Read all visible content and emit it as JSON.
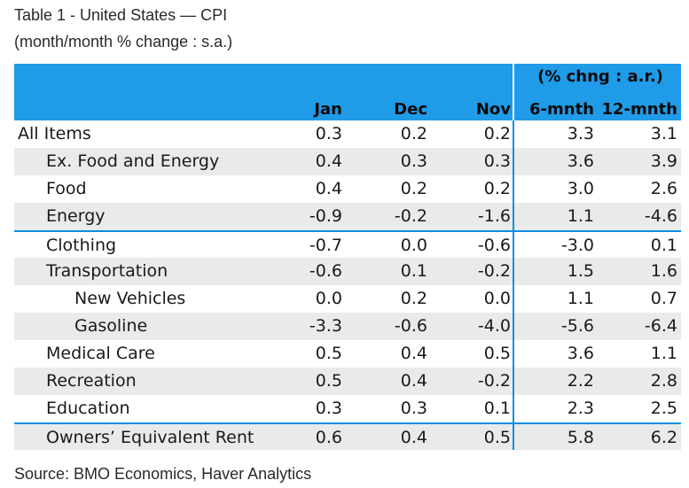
{
  "title": "Table 1 - United States — CPI",
  "subtitle": "(month/month % change : s.a.)",
  "table": {
    "header_group": "(% chng : a.r.)",
    "columns": [
      "Jan",
      "Dec",
      "Nov",
      "6-mnth",
      "12-mnth"
    ],
    "rows": [
      {
        "label": "All Items",
        "indent": 0,
        "values": [
          "0.3",
          "0.2",
          "0.2",
          "3.3",
          "3.1"
        ]
      },
      {
        "label": "Ex. Food and Energy",
        "indent": 1,
        "values": [
          "0.4",
          "0.3",
          "0.3",
          "3.6",
          "3.9"
        ]
      },
      {
        "label": "Food",
        "indent": 1,
        "values": [
          "0.4",
          "0.2",
          "0.2",
          "3.0",
          "2.6"
        ]
      },
      {
        "label": "Energy",
        "indent": 1,
        "values": [
          "-0.9",
          "-0.2",
          "-1.6",
          "1.1",
          "-4.6"
        ]
      },
      {
        "label": "Clothing",
        "indent": 1,
        "values": [
          "-0.7",
          "0.0",
          "-0.6",
          "-3.0",
          "0.1"
        ]
      },
      {
        "label": "Transportation",
        "indent": 1,
        "values": [
          "-0.6",
          "0.1",
          "-0.2",
          "1.5",
          "1.6"
        ]
      },
      {
        "label": "New Vehicles",
        "indent": 2,
        "values": [
          "0.0",
          "0.2",
          "0.0",
          "1.1",
          "0.7"
        ]
      },
      {
        "label": "Gasoline",
        "indent": 2,
        "values": [
          "-3.3",
          "-0.6",
          "-4.0",
          "-5.6",
          "-6.4"
        ]
      },
      {
        "label": "Medical Care",
        "indent": 1,
        "values": [
          "0.5",
          "0.4",
          "0.5",
          "3.6",
          "1.1"
        ]
      },
      {
        "label": "Recreation",
        "indent": 1,
        "values": [
          "0.5",
          "0.4",
          "-0.2",
          "2.2",
          "2.8"
        ]
      },
      {
        "label": "Education",
        "indent": 1,
        "values": [
          "0.3",
          "0.3",
          "0.1",
          "2.3",
          "2.5"
        ]
      },
      {
        "label": "Owners’ Equivalent Rent",
        "indent": 1,
        "values": [
          "0.6",
          "0.4",
          "0.5",
          "5.8",
          "6.2"
        ]
      }
    ]
  },
  "source": "Source: BMO Economics, Haver Analytics",
  "colors": {
    "header": "#1f9be8",
    "stripe": "#e9eaea",
    "rule": "#0b8fe0"
  }
}
